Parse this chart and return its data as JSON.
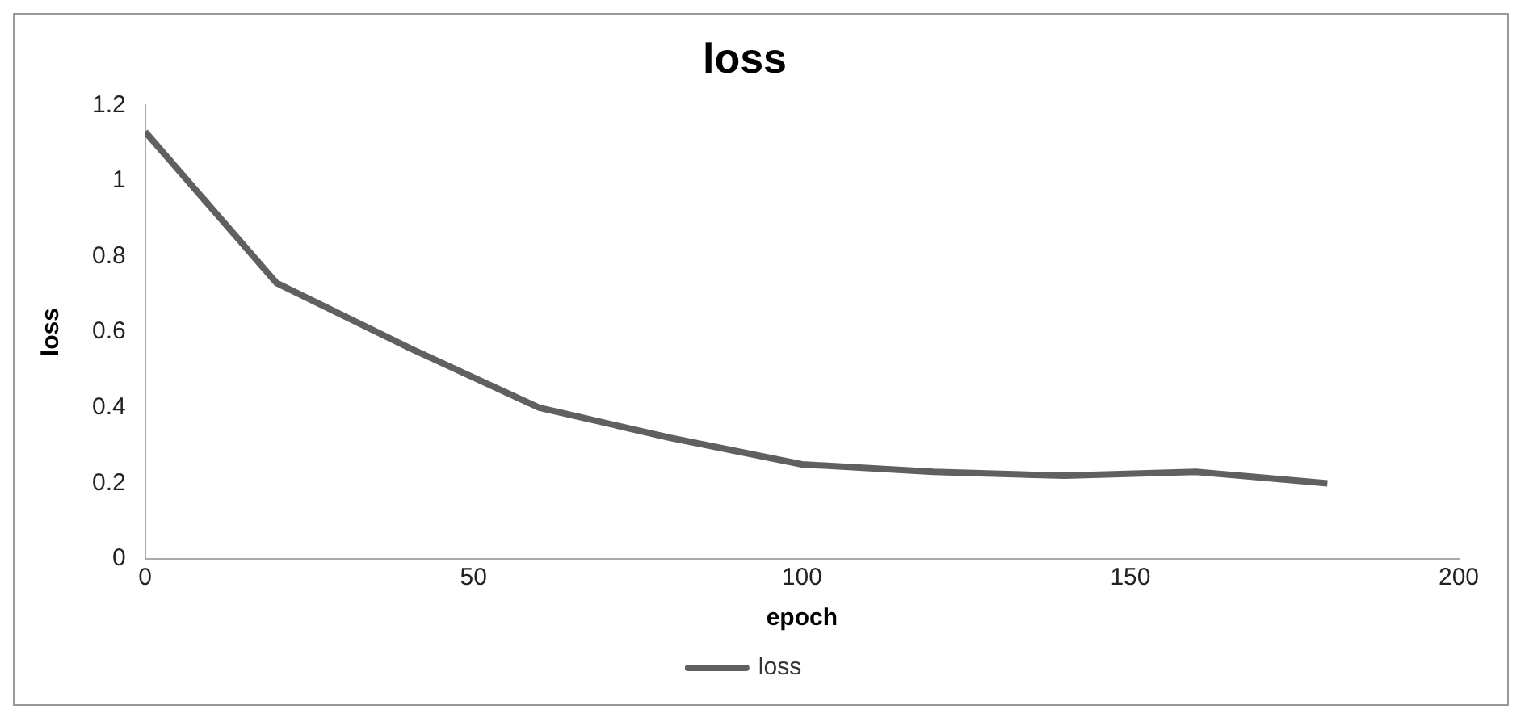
{
  "chart_data": {
    "type": "line",
    "title": "loss",
    "xlabel": "epoch",
    "ylabel": "loss",
    "x": [
      0,
      20,
      40,
      60,
      80,
      100,
      120,
      140,
      160,
      180
    ],
    "series": [
      {
        "name": "loss",
        "color": "#606060",
        "values": [
          1.13,
          0.73,
          0.56,
          0.4,
          0.32,
          0.25,
          0.23,
          0.22,
          0.23,
          0.2
        ]
      }
    ],
    "xlim": [
      0,
      200
    ],
    "xticks": [
      0,
      50,
      100,
      150,
      200
    ],
    "ylim": [
      0,
      1.2
    ],
    "yticks": [
      0,
      0.2,
      0.4,
      0.6,
      0.8,
      1,
      1.2
    ],
    "grid": false,
    "legend": "bottom",
    "marker": "none",
    "line_style": "solid"
  }
}
